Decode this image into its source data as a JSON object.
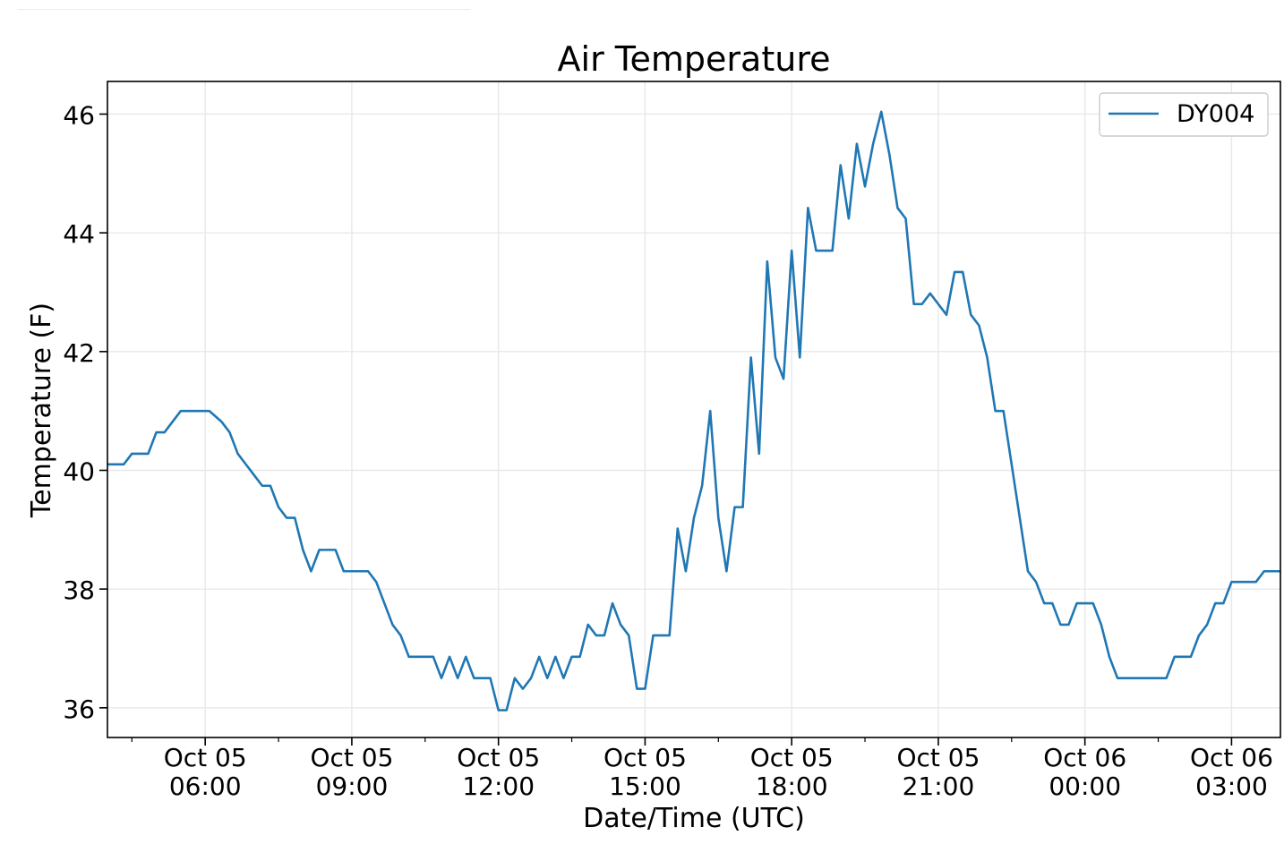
{
  "chart_data": {
    "type": "line",
    "title": "Air Temperature",
    "xlabel": "Date/Time (UTC)",
    "ylabel": "Temperature (F)",
    "ylim": [
      35.5,
      46.55
    ],
    "xlim": [
      "2025-10-05 04:00",
      "2025-10-06 04:00"
    ],
    "grid": true,
    "legend_position": "top-right",
    "x_ticks": [
      {
        "value": "2025-10-05 06:00",
        "label_top": "Oct 05",
        "label_bottom": "06:00"
      },
      {
        "value": "2025-10-05 09:00",
        "label_top": "Oct 05",
        "label_bottom": "09:00"
      },
      {
        "value": "2025-10-05 12:00",
        "label_top": "Oct 05",
        "label_bottom": "12:00"
      },
      {
        "value": "2025-10-05 15:00",
        "label_top": "Oct 05",
        "label_bottom": "15:00"
      },
      {
        "value": "2025-10-05 18:00",
        "label_top": "Oct 05",
        "label_bottom": "18:00"
      },
      {
        "value": "2025-10-05 21:00",
        "label_top": "Oct 05",
        "label_bottom": "21:00"
      },
      {
        "value": "2025-10-06 00:00",
        "label_top": "Oct 06",
        "label_bottom": "00:00"
      },
      {
        "value": "2025-10-06 03:00",
        "label_top": "Oct 06",
        "label_bottom": "03:00"
      }
    ],
    "y_ticks": [
      36,
      38,
      40,
      42,
      44,
      46
    ],
    "series": [
      {
        "name": "DY004",
        "color": "#1f77b4",
        "points": [
          [
            "2025-10-05 04:00",
            40.1
          ],
          [
            "2025-10-05 04:20",
            40.1
          ],
          [
            "2025-10-05 04:30",
            40.28
          ],
          [
            "2025-10-05 04:50",
            40.28
          ],
          [
            "2025-10-05 05:00",
            40.64
          ],
          [
            "2025-10-05 05:10",
            40.64
          ],
          [
            "2025-10-05 05:20",
            40.82
          ],
          [
            "2025-10-05 05:30",
            41.0
          ],
          [
            "2025-10-05 06:05",
            41.0
          ],
          [
            "2025-10-05 06:20",
            40.82
          ],
          [
            "2025-10-05 06:30",
            40.64
          ],
          [
            "2025-10-05 06:40",
            40.28
          ],
          [
            "2025-10-05 06:50",
            40.1
          ],
          [
            "2025-10-05 07:00",
            39.92
          ],
          [
            "2025-10-05 07:10",
            39.74
          ],
          [
            "2025-10-05 07:20",
            39.74
          ],
          [
            "2025-10-05 07:30",
            39.38
          ],
          [
            "2025-10-05 07:40",
            39.2
          ],
          [
            "2025-10-05 07:50",
            39.2
          ],
          [
            "2025-10-05 08:00",
            38.66
          ],
          [
            "2025-10-05 08:10",
            38.3
          ],
          [
            "2025-10-05 08:20",
            38.66
          ],
          [
            "2025-10-05 08:40",
            38.66
          ],
          [
            "2025-10-05 08:50",
            38.3
          ],
          [
            "2025-10-05 09:20",
            38.3
          ],
          [
            "2025-10-05 09:30",
            38.12
          ],
          [
            "2025-10-05 09:40",
            37.76
          ],
          [
            "2025-10-05 09:50",
            37.4
          ],
          [
            "2025-10-05 10:00",
            37.22
          ],
          [
            "2025-10-05 10:10",
            36.86
          ],
          [
            "2025-10-05 10:40",
            36.86
          ],
          [
            "2025-10-05 10:50",
            36.5
          ],
          [
            "2025-10-05 11:00",
            36.86
          ],
          [
            "2025-10-05 11:10",
            36.5
          ],
          [
            "2025-10-05 11:20",
            36.86
          ],
          [
            "2025-10-05 11:30",
            36.5
          ],
          [
            "2025-10-05 11:50",
            36.5
          ],
          [
            "2025-10-05 12:00",
            35.96
          ],
          [
            "2025-10-05 12:10",
            35.96
          ],
          [
            "2025-10-05 12:20",
            36.5
          ],
          [
            "2025-10-05 12:30",
            36.32
          ],
          [
            "2025-10-05 12:40",
            36.5
          ],
          [
            "2025-10-05 12:50",
            36.86
          ],
          [
            "2025-10-05 13:00",
            36.5
          ],
          [
            "2025-10-05 13:10",
            36.86
          ],
          [
            "2025-10-05 13:20",
            36.5
          ],
          [
            "2025-10-05 13:30",
            36.86
          ],
          [
            "2025-10-05 13:40",
            36.86
          ],
          [
            "2025-10-05 13:50",
            37.4
          ],
          [
            "2025-10-05 14:00",
            37.22
          ],
          [
            "2025-10-05 14:10",
            37.22
          ],
          [
            "2025-10-05 14:20",
            37.76
          ],
          [
            "2025-10-05 14:30",
            37.4
          ],
          [
            "2025-10-05 14:40",
            37.22
          ],
          [
            "2025-10-05 14:50",
            36.32
          ],
          [
            "2025-10-05 15:00",
            36.32
          ],
          [
            "2025-10-05 15:10",
            37.22
          ],
          [
            "2025-10-05 15:30",
            37.22
          ],
          [
            "2025-10-05 15:40",
            39.02
          ],
          [
            "2025-10-05 15:50",
            38.3
          ],
          [
            "2025-10-05 16:00",
            39.2
          ],
          [
            "2025-10-05 16:10",
            39.74
          ],
          [
            "2025-10-05 16:20",
            41.0
          ],
          [
            "2025-10-05 16:30",
            39.2
          ],
          [
            "2025-10-05 16:40",
            38.3
          ],
          [
            "2025-10-05 16:50",
            39.38
          ],
          [
            "2025-10-05 17:00",
            39.38
          ],
          [
            "2025-10-05 17:10",
            41.9
          ],
          [
            "2025-10-05 17:20",
            40.28
          ],
          [
            "2025-10-05 17:30",
            43.52
          ],
          [
            "2025-10-05 17:40",
            41.9
          ],
          [
            "2025-10-05 17:50",
            41.54
          ],
          [
            "2025-10-05 18:00",
            43.7
          ],
          [
            "2025-10-05 18:10",
            41.9
          ],
          [
            "2025-10-05 18:20",
            44.42
          ],
          [
            "2025-10-05 18:30",
            43.7
          ],
          [
            "2025-10-05 18:50",
            43.7
          ],
          [
            "2025-10-05 19:00",
            45.14
          ],
          [
            "2025-10-05 19:10",
            44.24
          ],
          [
            "2025-10-05 19:20",
            45.5
          ],
          [
            "2025-10-05 19:30",
            44.78
          ],
          [
            "2025-10-05 19:40",
            45.5
          ],
          [
            "2025-10-05 19:50",
            46.04
          ],
          [
            "2025-10-05 20:00",
            45.32
          ],
          [
            "2025-10-05 20:10",
            44.42
          ],
          [
            "2025-10-05 20:20",
            44.24
          ],
          [
            "2025-10-05 20:30",
            42.8
          ],
          [
            "2025-10-05 20:40",
            42.8
          ],
          [
            "2025-10-05 20:50",
            42.98
          ],
          [
            "2025-10-05 21:00",
            42.8
          ],
          [
            "2025-10-05 21:10",
            42.62
          ],
          [
            "2025-10-05 21:20",
            43.34
          ],
          [
            "2025-10-05 21:30",
            43.34
          ],
          [
            "2025-10-05 21:40",
            42.62
          ],
          [
            "2025-10-05 21:50",
            42.44
          ],
          [
            "2025-10-05 22:00",
            41.9
          ],
          [
            "2025-10-05 22:10",
            41.0
          ],
          [
            "2025-10-05 22:20",
            41.0
          ],
          [
            "2025-10-05 22:30",
            40.1
          ],
          [
            "2025-10-05 22:40",
            39.2
          ],
          [
            "2025-10-05 22:50",
            38.3
          ],
          [
            "2025-10-05 23:00",
            38.12
          ],
          [
            "2025-10-05 23:10",
            37.76
          ],
          [
            "2025-10-05 23:20",
            37.76
          ],
          [
            "2025-10-05 23:30",
            37.4
          ],
          [
            "2025-10-05 23:40",
            37.4
          ],
          [
            "2025-10-05 23:50",
            37.76
          ],
          [
            "2025-10-06 00:10",
            37.76
          ],
          [
            "2025-10-06 00:20",
            37.4
          ],
          [
            "2025-10-06 00:30",
            36.86
          ],
          [
            "2025-10-06 00:40",
            36.5
          ],
          [
            "2025-10-06 01:40",
            36.5
          ],
          [
            "2025-10-06 01:50",
            36.86
          ],
          [
            "2025-10-06 02:10",
            36.86
          ],
          [
            "2025-10-06 02:20",
            37.22
          ],
          [
            "2025-10-06 02:30",
            37.4
          ],
          [
            "2025-10-06 02:40",
            37.76
          ],
          [
            "2025-10-06 02:50",
            37.76
          ],
          [
            "2025-10-06 03:00",
            38.12
          ],
          [
            "2025-10-06 03:30",
            38.12
          ],
          [
            "2025-10-06 03:40",
            38.3
          ],
          [
            "2025-10-06 04:00",
            38.3
          ]
        ]
      }
    ]
  }
}
